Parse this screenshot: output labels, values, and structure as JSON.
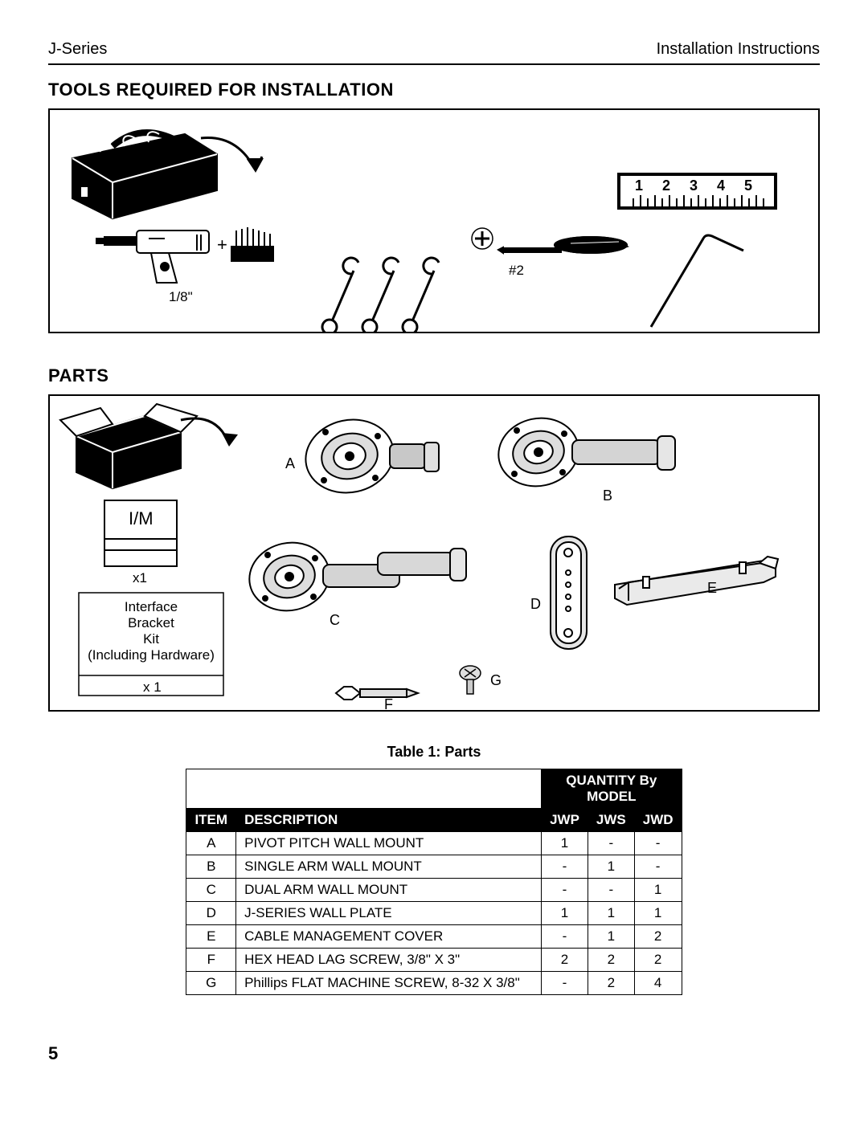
{
  "header": {
    "series": "J-Series",
    "doc": "Installation Instructions"
  },
  "sections": {
    "tools_title": "TOOLS REQUIRED FOR INSTALLATION",
    "parts_title": "PARTS"
  },
  "tools": {
    "drill_label": "1/8\"",
    "screwdriver_label": "#2",
    "ruler_marks": [
      "1",
      "2",
      "3",
      "4",
      "5"
    ]
  },
  "parts_diagram": {
    "im_label": "I/M",
    "im_qty": "x1",
    "bracket_kit_line1": "Interface",
    "bracket_kit_line2": "Bracket",
    "bracket_kit_line3": "Kit",
    "bracket_kit_line4": "(Including Hardware)",
    "bracket_kit_qty": "x 1",
    "labels": {
      "A": "A",
      "B": "B",
      "C": "C",
      "D": "D",
      "E": "E",
      "F": "F",
      "G": "G"
    }
  },
  "table": {
    "caption": "Table 1: Parts",
    "qty_header1": "QUANTITY By",
    "qty_header2": "MODEL",
    "col_item": "ITEM",
    "col_desc": "DESCRIPTION",
    "models": [
      "JWP",
      "JWS",
      "JWD"
    ],
    "rows": [
      {
        "item": "A",
        "desc": "PIVOT PITCH WALL MOUNT",
        "q": [
          "1",
          "-",
          "-"
        ]
      },
      {
        "item": "B",
        "desc": "SINGLE ARM WALL MOUNT",
        "q": [
          "-",
          "1",
          "-"
        ]
      },
      {
        "item": "C",
        "desc": "DUAL ARM WALL MOUNT",
        "q": [
          "-",
          "-",
          "1"
        ]
      },
      {
        "item": "D",
        "desc": "J-SERIES WALL PLATE",
        "q": [
          "1",
          "1",
          "1"
        ]
      },
      {
        "item": "E",
        "desc": "CABLE MANAGEMENT COVER",
        "q": [
          "-",
          "1",
          "2"
        ]
      },
      {
        "item": "F",
        "desc": "HEX HEAD LAG SCREW, 3/8\" X 3\"",
        "q": [
          "2",
          "2",
          "2"
        ]
      },
      {
        "item": "G",
        "desc": "Phillips FLAT MACHINE SCREW, 8-32 X 3/8\"",
        "q": [
          "-",
          "2",
          "4"
        ]
      }
    ]
  },
  "page_number": "5",
  "style": {
    "line_color": "#000000",
    "bg": "#ffffff",
    "fill_dark": "#000000",
    "fill_gray": "#bdbdbd",
    "fill_light": "#ffffff",
    "stroke_width_thin": 1.5,
    "stroke_width": 2,
    "stroke_width_heavy": 3,
    "font_body": 18,
    "font_small": 15,
    "font_title": 22
  }
}
